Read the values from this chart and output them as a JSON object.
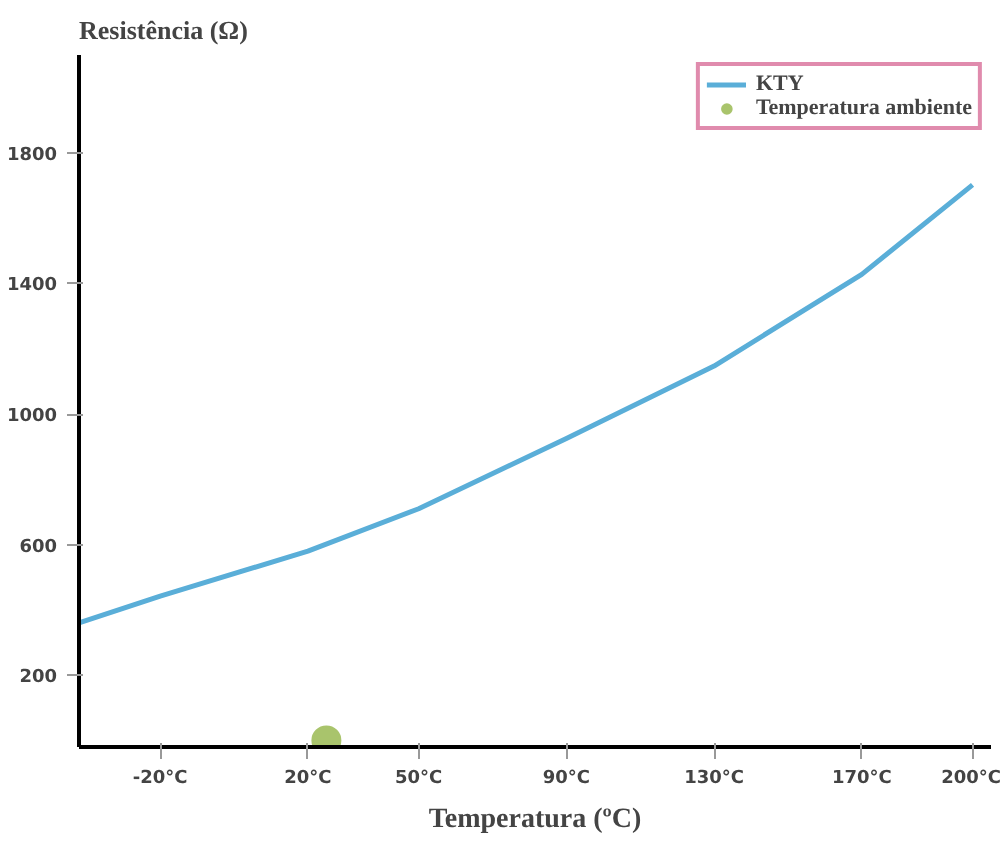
{
  "chart_data": {
    "type": "line",
    "ylabel": "Resistência (Ω)",
    "xlabel": "Temperatura (ºC)",
    "xlim": [
      -42,
      205
    ],
    "ylim": [
      -20,
      2100
    ],
    "xticks": [
      {
        "value": -20,
        "label": "-20°C"
      },
      {
        "value": 20,
        "label": "20°C"
      },
      {
        "value": 50,
        "label": "50°C"
      },
      {
        "value": 90,
        "label": "90°C"
      },
      {
        "value": 130,
        "label": "130°C"
      },
      {
        "value": 170,
        "label": "170°C"
      },
      {
        "value": 200,
        "label": "200°C"
      }
    ],
    "yticks": [
      200,
      600,
      1000,
      1400,
      1800
    ],
    "series": [
      {
        "name": "KTY",
        "color": "#5aaed8",
        "x": [
          -42,
          -20,
          20,
          50,
          90,
          130,
          170,
          200
        ],
        "values": [
          360,
          442,
          580,
          710,
          925,
          1147,
          1428,
          1702
        ]
      },
      {
        "name": "Temperatura ambiente",
        "type": "scatter",
        "marker": "circle",
        "color": "#a9c46c",
        "x": [
          25
        ],
        "values": [
          0
        ]
      }
    ],
    "legend": "top right",
    "grid": false
  }
}
